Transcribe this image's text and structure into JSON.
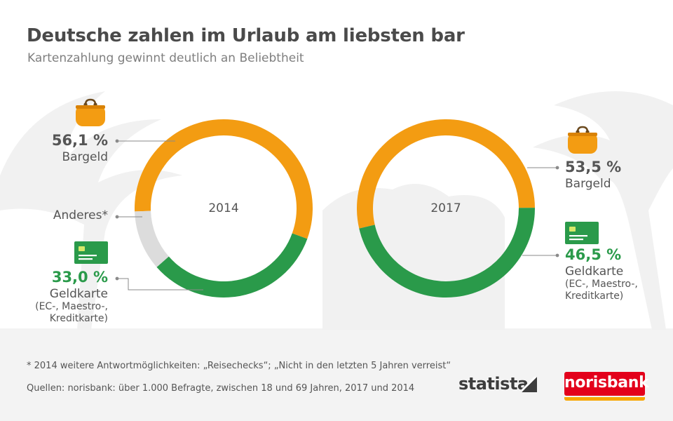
{
  "title": "Deutsche zahlen im Urlaub am liebsten bar",
  "subtitle": "Kartenzahlung gewinnt deutlich an Beliebtheit",
  "colors": {
    "cash": "#f39c12",
    "card": "#2a9a4a",
    "other": "#dcdcdc"
  },
  "icons": {
    "cash": "coin-purse-icon",
    "card": "credit-card-icon"
  },
  "chart_data": [
    {
      "type": "pie",
      "style": "donut",
      "center_label": "2014",
      "slices": [
        {
          "label": "Bargeld",
          "value": 56.1,
          "display": "56,1 %",
          "color": "#f39c12"
        },
        {
          "label": "Geldkarte",
          "value": 33.0,
          "display": "33,0 %",
          "color": "#2a9a4a",
          "note": "(EC-, Maestro-, Kreditkarte)"
        },
        {
          "label": "Anderes*",
          "value": 10.9,
          "display": "",
          "color": "#dcdcdc"
        }
      ]
    },
    {
      "type": "pie",
      "style": "donut",
      "center_label": "2017",
      "slices": [
        {
          "label": "Bargeld",
          "value": 53.5,
          "display": "53,5 %",
          "color": "#f39c12"
        },
        {
          "label": "Geldkarte",
          "value": 46.5,
          "display": "46,5 %",
          "color": "#2a9a4a",
          "note": "(EC-, Maestro-, Kreditkarte)"
        }
      ]
    }
  ],
  "labels": {
    "l_cash_pct": "56,1 %",
    "l_cash_name": "Bargeld",
    "l_other": "Anderes*",
    "l_card_pct": "33,0 %",
    "l_card_name": "Geldkarte",
    "l_card_note1": "(EC-, Maestro-,",
    "l_card_note2": "Kreditkarte)",
    "r_cash_pct": "53,5 %",
    "r_cash_name": "Bargeld",
    "r_card_pct": "46,5 %",
    "r_card_name": "Geldkarte",
    "r_card_note1": "(EC-, Maestro-,",
    "r_card_note2": "Kreditkarte)"
  },
  "footnote": "* 2014 weitere Antwortmöglichkeiten: „Reisechecks“; „Nicht in den letzten 5 Jahren verreist“",
  "source": "Quellen: norisbank: über 1.000 Befragte, zwischen 18 und 69 Jahren, 2017 und 2014",
  "brand": {
    "statista": "statista",
    "norisbank": "norisbank"
  }
}
